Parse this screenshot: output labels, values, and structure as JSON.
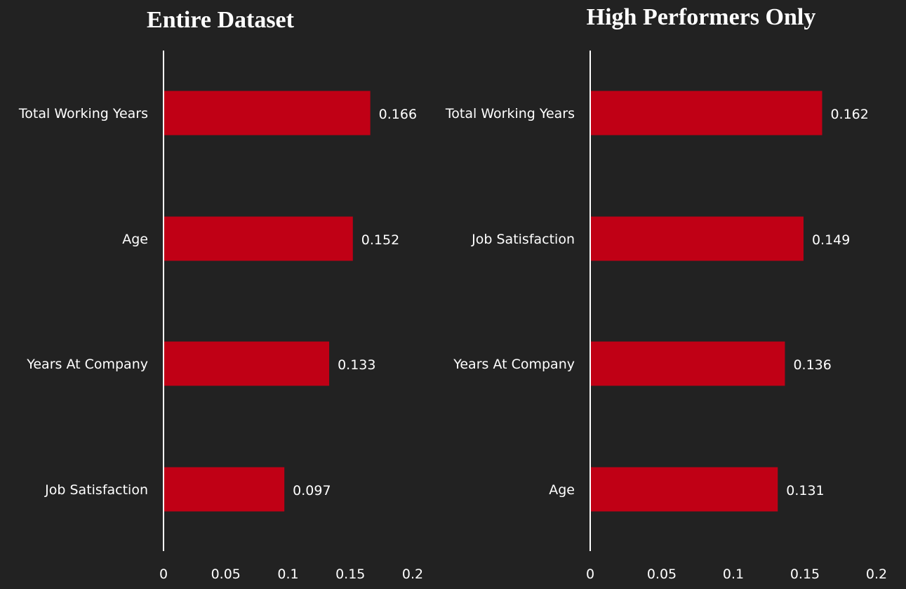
{
  "colors": {
    "background": "#222222",
    "bar": "#c00015",
    "text": "#ffffff",
    "axis": "#ffffff"
  },
  "chart_data": [
    {
      "type": "bar",
      "orientation": "horizontal",
      "title": "Entire Dataset",
      "categories": [
        "Total Working Years",
        "Age",
        "Years At Company",
        "Job Satisfaction"
      ],
      "values": [
        0.166,
        0.152,
        0.133,
        0.097
      ],
      "value_labels": [
        "0.166",
        "0.152",
        "0.133",
        "0.097"
      ],
      "xlim": [
        0,
        0.2
      ],
      "xticks": [
        "0",
        "0.05",
        "0.1",
        "0.15",
        "0.2"
      ],
      "grid": false,
      "legend": "none"
    },
    {
      "type": "bar",
      "orientation": "horizontal",
      "title": "High Performers Only",
      "categories": [
        "Total Working Years",
        "Job Satisfaction",
        "Years At Company",
        "Age"
      ],
      "values": [
        0.162,
        0.149,
        0.136,
        0.131
      ],
      "value_labels": [
        "0.162",
        "0.149",
        "0.136",
        "0.131"
      ],
      "xlim": [
        0,
        0.2
      ],
      "xticks": [
        "0",
        "0.05",
        "0.1",
        "0.15",
        "0.2"
      ],
      "grid": false,
      "legend": "none"
    }
  ]
}
